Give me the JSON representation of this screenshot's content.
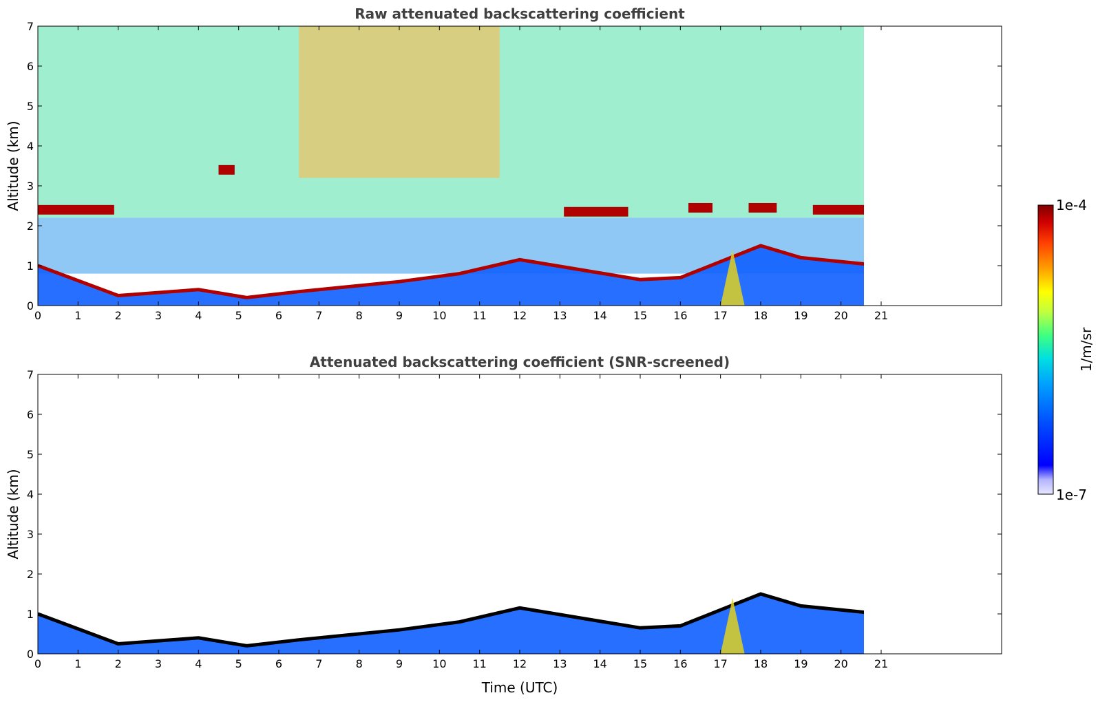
{
  "chart_data": [
    {
      "type": "heatmap",
      "title": "Raw attenuated backscattering coefficient",
      "xlabel": "",
      "ylabel": "Altitude (km)",
      "xlim": [
        0,
        24
      ],
      "ylim": [
        0,
        7
      ],
      "x_ticks": [
        "0",
        "1",
        "2",
        "3",
        "4",
        "5",
        "6",
        "7",
        "8",
        "9",
        "10",
        "11",
        "12",
        "13",
        "14",
        "15",
        "16",
        "17",
        "18",
        "19",
        "20",
        "21"
      ],
      "y_ticks": [
        "0",
        "1",
        "2",
        "3",
        "4",
        "5",
        "6",
        "7"
      ],
      "data_extent_hours": [
        0,
        21
      ],
      "noise_upper_air": true,
      "cloud_layers": [
        {
          "t0": 0.0,
          "t1": 1.9,
          "alt": 2.4
        },
        {
          "t0": 13.1,
          "t1": 14.7,
          "alt": 2.35
        },
        {
          "t0": 16.2,
          "t1": 16.8,
          "alt": 2.45
        },
        {
          "t0": 17.7,
          "t1": 18.4,
          "alt": 2.45
        },
        {
          "t0": 19.3,
          "t1": 21.0,
          "alt": 2.4
        },
        {
          "t0": 4.5,
          "t1": 4.9,
          "alt": 3.4
        }
      ],
      "boundary_layer_top": [
        {
          "t": 0,
          "alt": 1.0
        },
        {
          "t": 2,
          "alt": 0.25
        },
        {
          "t": 4,
          "alt": 0.4
        },
        {
          "t": 5.2,
          "alt": 0.2
        },
        {
          "t": 6.5,
          "alt": 0.35
        },
        {
          "t": 9,
          "alt": 0.6
        },
        {
          "t": 10.5,
          "alt": 0.8
        },
        {
          "t": 12,
          "alt": 1.15
        },
        {
          "t": 15,
          "alt": 0.65
        },
        {
          "t": 16,
          "alt": 0.7
        },
        {
          "t": 17,
          "alt": 1.1
        },
        {
          "t": 18,
          "alt": 1.5
        },
        {
          "t": 19,
          "alt": 1.2
        },
        {
          "t": 21,
          "alt": 1.0
        }
      ]
    },
    {
      "type": "heatmap",
      "title": "Attenuated backscattering coefficient (SNR-screened)",
      "xlabel": "Time (UTC)",
      "ylabel": "Altitude (km)",
      "xlim": [
        0,
        24
      ],
      "ylim": [
        0,
        7
      ],
      "x_ticks": [
        "0",
        "1",
        "2",
        "3",
        "4",
        "5",
        "6",
        "7",
        "8",
        "9",
        "10",
        "11",
        "12",
        "13",
        "14",
        "15",
        "16",
        "17",
        "18",
        "19",
        "20",
        "21"
      ],
      "y_ticks": [
        "0",
        "1",
        "2",
        "3",
        "4",
        "5",
        "6",
        "7"
      ],
      "data_extent_hours": [
        0,
        21
      ],
      "noise_upper_air": false
    }
  ],
  "colorbar": {
    "label": "1/m/sr",
    "max_label": "1e-4",
    "min_label": "1e-7",
    "scale": "log",
    "colors": [
      "#e6e6ff",
      "#b4b4ff",
      "#0000ff",
      "#0050ff",
      "#00a0ff",
      "#00e0e0",
      "#40ff80",
      "#c0ff40",
      "#ffff00",
      "#ffa000",
      "#ff4000",
      "#d00000",
      "#800000"
    ]
  }
}
